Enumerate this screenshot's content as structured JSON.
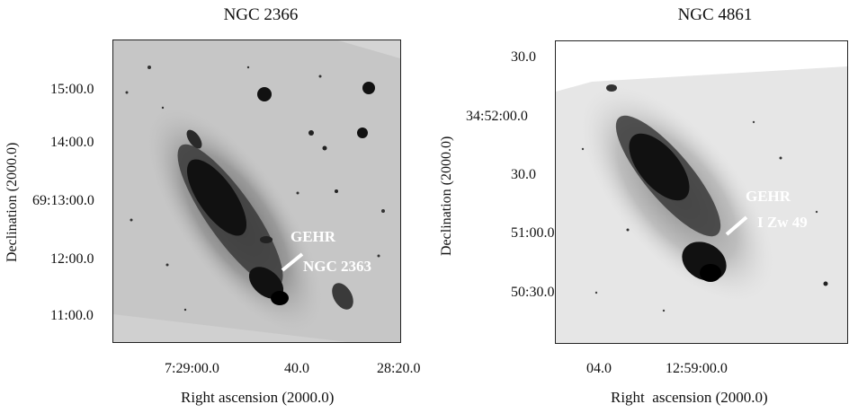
{
  "panels": [
    {
      "title": "NGC 2366",
      "ylabel": "Declination (2000.0)",
      "xlabel": "Right ascension (2000.0)",
      "yticks": [
        "15:00.0",
        "14:00.0",
        "69:13:00.0",
        "12:00.0",
        "11:00.0"
      ],
      "xticks": [
        "7:29:00.0",
        "40.0",
        "28:20.0"
      ],
      "annotation_top": "GEHR",
      "annotation_bottom": "NGC 2363"
    },
    {
      "title": "NGC 4861",
      "ylabel": "Declination (2000.0)",
      "xlabel": "Right  ascension (2000.0)",
      "yticks": [
        "30.0",
        "34:52:00.0",
        "30.0",
        "51:00.0",
        "50:30.0"
      ],
      "xticks": [
        "04.0",
        "12:59:00.0"
      ],
      "annotation_top": "GEHR",
      "annotation_bottom": "I Zw 49"
    }
  ]
}
